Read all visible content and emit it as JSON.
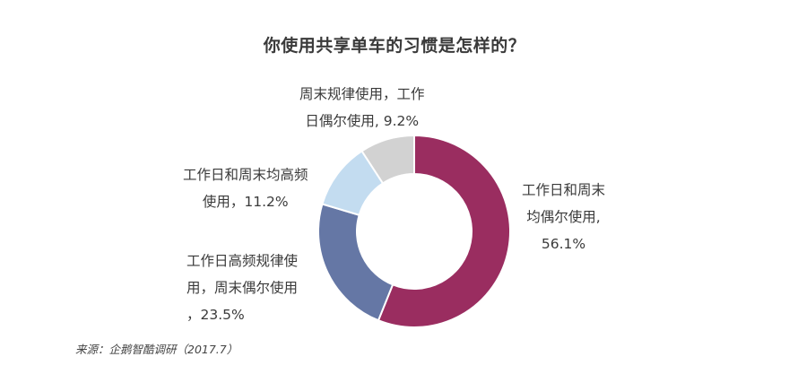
{
  "chart_data": {
    "type": "pie",
    "title": "你使用共享单车的习惯是怎样的？",
    "slices": [
      {
        "label_lines": [
          "工作日和周末",
          "均偶尔使用,",
          "56.1%"
        ],
        "value": 56.1,
        "color": "#9a2d60"
      },
      {
        "label_lines": [
          "工作日高频规律使",
          "用，周末偶尔使用",
          "，23.5%"
        ],
        "value": 23.5,
        "color": "#6577a5"
      },
      {
        "label_lines": [
          "工作日和周末均高频",
          "使用，11.2%"
        ],
        "value": 11.2,
        "color": "#c3dcf0"
      },
      {
        "label_lines": [
          "周末规律使用，工作",
          "日偶尔使用, 9.2%"
        ],
        "value": 9.2,
        "color": "#d2d2d2"
      }
    ],
    "source": "来源：企鹅智酷调研（2017.7）"
  }
}
